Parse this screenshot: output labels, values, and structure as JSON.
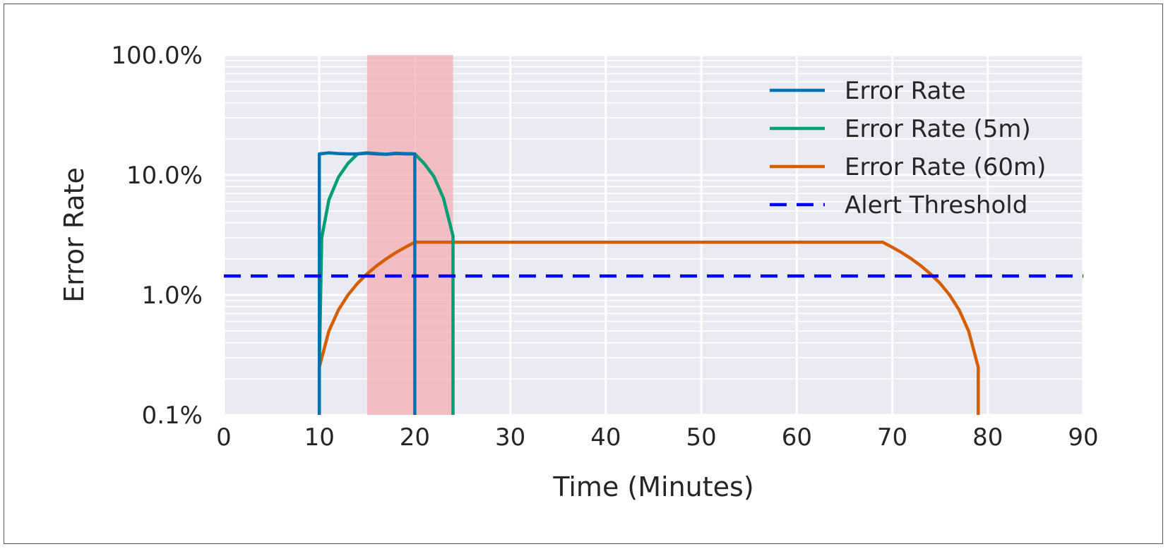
{
  "chart_data": {
    "type": "line",
    "title": "",
    "xlabel": "Time (Minutes)",
    "ylabel": "Error Rate",
    "xlim": [
      0,
      90
    ],
    "ylim": [
      0.1,
      100
    ],
    "yscale": "log",
    "grid": true,
    "legend_position": "top-right",
    "x_ticks": [
      0,
      10,
      20,
      30,
      40,
      50,
      60,
      70,
      80,
      90
    ],
    "x_tick_labels": [
      "0",
      "10",
      "20",
      "30",
      "40",
      "50",
      "60",
      "70",
      "80",
      "90"
    ],
    "y_ticks": [
      0.1,
      1,
      10,
      100
    ],
    "y_tick_labels": [
      "0.1%",
      "1.0%",
      "10.0%",
      "100.0%"
    ],
    "highlight_region": {
      "x": [
        15,
        24
      ],
      "color": "#f4a3a8"
    },
    "series": [
      {
        "name": "Error Rate",
        "color": "#0072b2",
        "style": "solid",
        "x": [
          10,
          10,
          11,
          12,
          13,
          14,
          15,
          16,
          17,
          18,
          19,
          20,
          20
        ],
        "y": [
          0.1,
          15,
          15.3,
          15.1,
          15,
          15,
          15.2,
          15,
          14.9,
          15.1,
          15,
          15,
          0.1
        ]
      },
      {
        "name": "Error Rate (5m)",
        "color": "#009e73",
        "style": "solid",
        "x": [
          10,
          10,
          10.25,
          11,
          12,
          13,
          14,
          15,
          16,
          17,
          18,
          19,
          20,
          21,
          22,
          23,
          24,
          24
        ],
        "y": [
          0.1,
          0.25,
          3,
          6.2,
          9.6,
          12.5,
          15,
          15.3,
          15.1,
          14.9,
          15.2,
          15.1,
          15,
          12.4,
          9.7,
          6.4,
          3.1,
          0.1
        ]
      },
      {
        "name": "Error Rate (60m)",
        "color": "#d55e00",
        "style": "solid",
        "x": [
          10,
          10,
          11,
          12,
          13,
          14,
          15,
          16,
          17,
          18,
          19,
          20,
          30,
          40,
          50,
          60,
          69,
          70,
          71,
          72,
          73,
          74,
          75,
          76,
          77,
          78,
          79,
          79
        ],
        "y": [
          0.1,
          0.25,
          0.5,
          0.75,
          1.0,
          1.25,
          1.5,
          1.75,
          2.0,
          2.25,
          2.5,
          2.75,
          2.75,
          2.75,
          2.75,
          2.75,
          2.75,
          2.5,
          2.25,
          2.0,
          1.75,
          1.5,
          1.25,
          1.0,
          0.75,
          0.5,
          0.25,
          0.1
        ]
      },
      {
        "name": "Alert Threshold",
        "color": "#0000ff",
        "style": "dashed",
        "x": [
          0,
          90
        ],
        "y": [
          1.44,
          1.44
        ]
      }
    ]
  }
}
